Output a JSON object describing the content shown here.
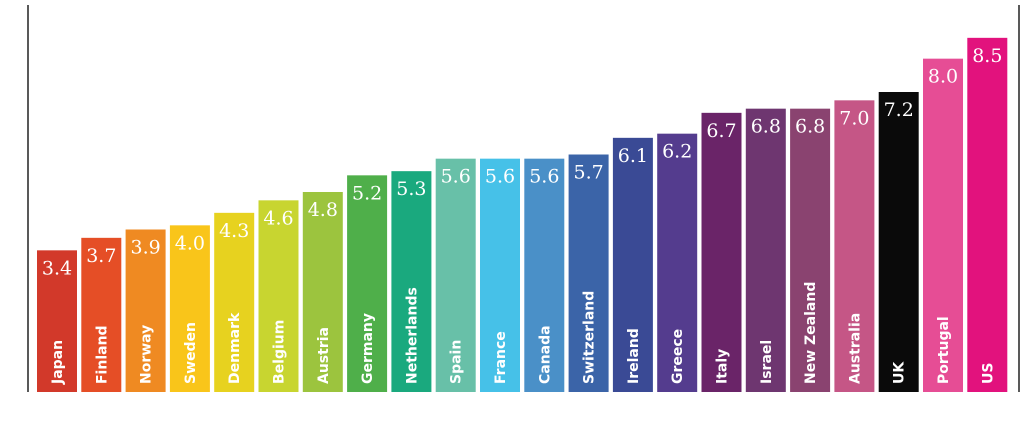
{
  "chart_data": {
    "type": "bar",
    "categories": [
      "Japan",
      "Finland",
      "Norway",
      "Sweden",
      "Denmark",
      "Belgium",
      "Austria",
      "Germany",
      "Netherlands",
      "Spain",
      "France",
      "Canada",
      "Switzerland",
      "Ireland",
      "Greece",
      "Italy",
      "Israel",
      "New Zealand",
      "Australia",
      "UK",
      "Portugal",
      "US"
    ],
    "values": [
      3.4,
      3.7,
      3.9,
      4.0,
      4.3,
      4.6,
      4.8,
      5.2,
      5.3,
      5.6,
      5.6,
      5.6,
      5.7,
      6.1,
      6.2,
      6.7,
      6.8,
      6.8,
      7.0,
      7.2,
      8.0,
      8.5
    ],
    "value_labels": [
      "3.4",
      "3.7",
      "3.9",
      "4.0",
      "4.3",
      "4.6",
      "4.8",
      "5.2",
      "5.3",
      "5.6",
      "5.6",
      "5.6",
      "5.7",
      "6.1",
      "6.2",
      "6.7",
      "6.8",
      "6.8",
      "7.0",
      "7.2",
      "8.0",
      "8.5"
    ],
    "colors": [
      "#d2392a",
      "#e54e26",
      "#ef8a22",
      "#f9c51a",
      "#e7d21f",
      "#c8d530",
      "#9cc43e",
      "#4faf4a",
      "#1aa97e",
      "#68c0a8",
      "#46c1e8",
      "#4a90c8",
      "#3b64a8",
      "#3a4a95",
      "#543c8e",
      "#6a2468",
      "#6e3670",
      "#8a4370",
      "#c55686",
      "#0a0a0a",
      "#e64d95",
      "#e2127d"
    ],
    "ylim": [
      0,
      9
    ]
  }
}
